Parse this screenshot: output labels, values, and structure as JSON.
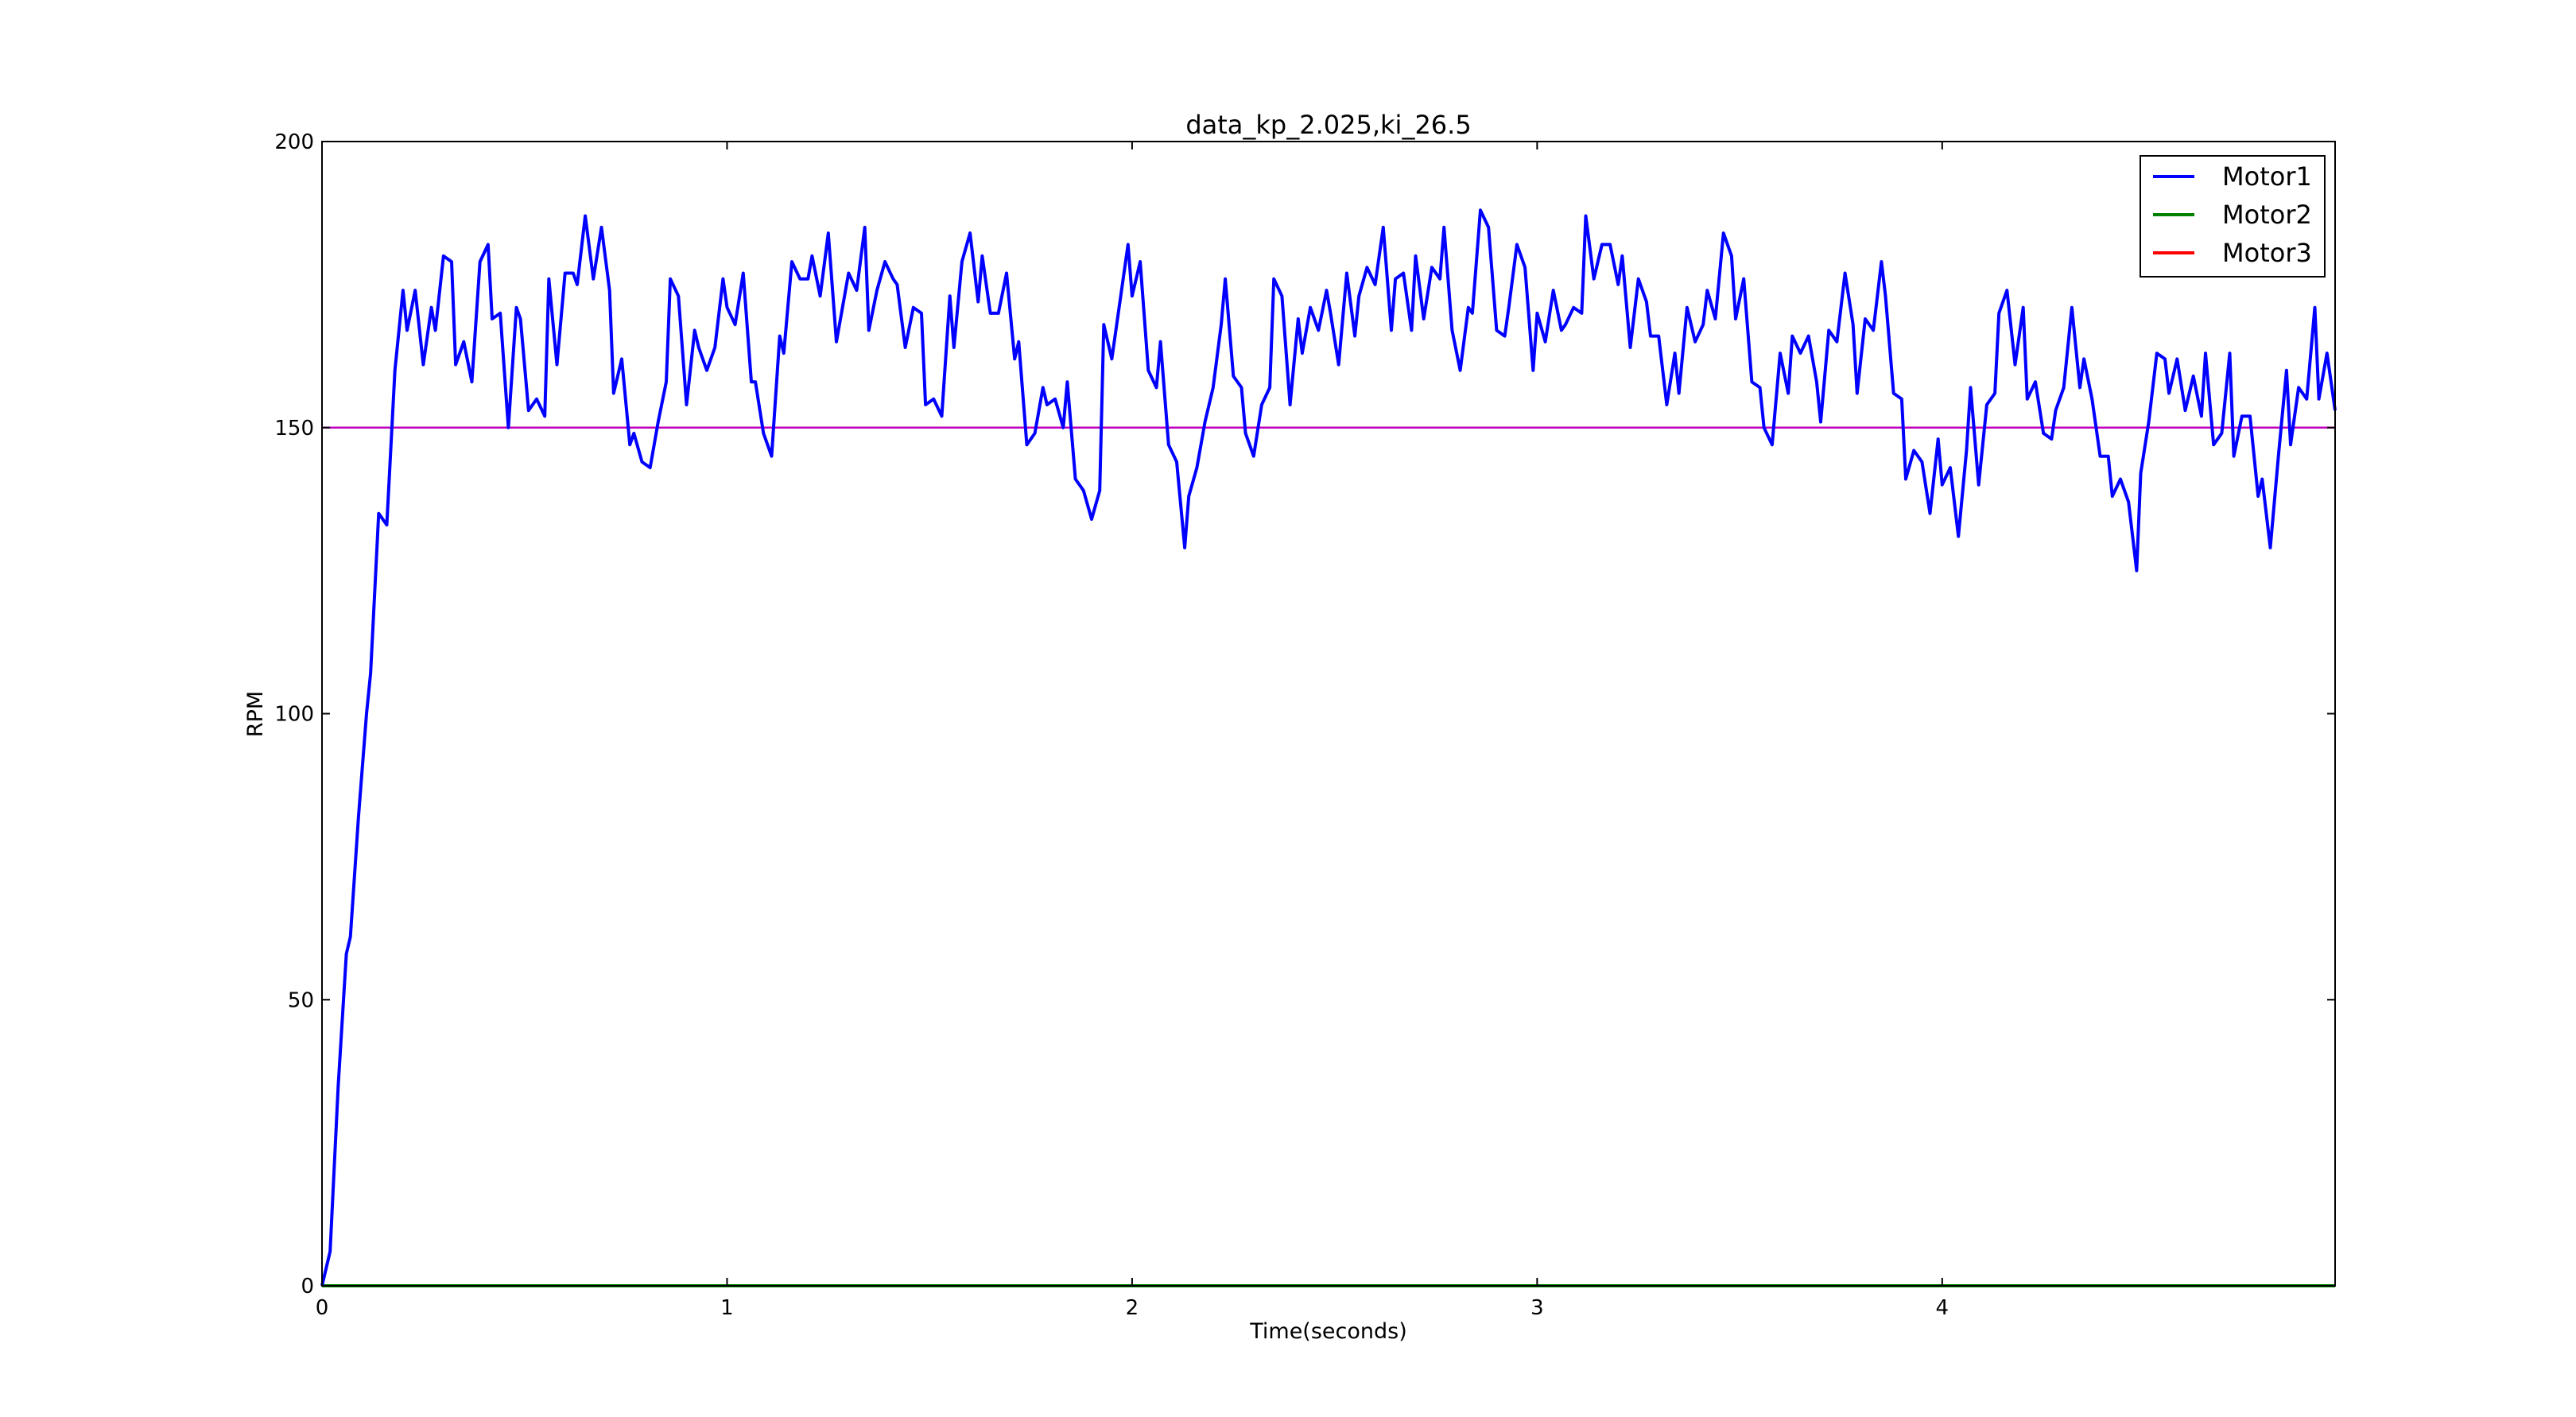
{
  "chart_data": {
    "type": "line",
    "title": "data_kp_2.025,ki_26.5",
    "xlabel": "Time(seconds)",
    "ylabel": "RPM",
    "xlim": [
      0,
      4.97
    ],
    "ylim": [
      0,
      200
    ],
    "xticks": [
      0,
      1,
      2,
      3,
      4
    ],
    "yticks": [
      0,
      50,
      100,
      150,
      200
    ],
    "grid": false,
    "legend_position": "top-right",
    "reference_line": {
      "y": 150,
      "color": "#bf00bf"
    },
    "series": [
      {
        "name": "Motor1",
        "color": "#0000ff",
        "points": [
          [
            0,
            0
          ],
          [
            0.02,
            6
          ],
          [
            0.04,
            35
          ],
          [
            0.06,
            58
          ],
          [
            0.07,
            61
          ],
          [
            0.09,
            82
          ],
          [
            0.11,
            100
          ],
          [
            0.12,
            107
          ],
          [
            0.14,
            135
          ],
          [
            0.16,
            133
          ],
          [
            0.18,
            160
          ],
          [
            0.2,
            174
          ],
          [
            0.21,
            167
          ],
          [
            0.23,
            174
          ],
          [
            0.25,
            161
          ],
          [
            0.27,
            171
          ],
          [
            0.28,
            167
          ],
          [
            0.3,
            180
          ],
          [
            0.32,
            179
          ],
          [
            0.33,
            161
          ],
          [
            0.35,
            165
          ],
          [
            0.37,
            158
          ],
          [
            0.39,
            179
          ],
          [
            0.41,
            182
          ],
          [
            0.42,
            169
          ],
          [
            0.44,
            170
          ],
          [
            0.46,
            150
          ],
          [
            0.48,
            171
          ],
          [
            0.49,
            169
          ],
          [
            0.51,
            153
          ],
          [
            0.53,
            155
          ],
          [
            0.55,
            152
          ],
          [
            0.56,
            176
          ],
          [
            0.58,
            161
          ],
          [
            0.6,
            177
          ],
          [
            0.62,
            177
          ],
          [
            0.63,
            175
          ],
          [
            0.65,
            187
          ],
          [
            0.67,
            176
          ],
          [
            0.69,
            185
          ],
          [
            0.71,
            174
          ],
          [
            0.72,
            156
          ],
          [
            0.74,
            162
          ],
          [
            0.76,
            147
          ],
          [
            0.77,
            149
          ],
          [
            0.79,
            144
          ],
          [
            0.81,
            143
          ],
          [
            0.83,
            151
          ],
          [
            0.85,
            158
          ],
          [
            0.86,
            176
          ],
          [
            0.88,
            173
          ],
          [
            0.9,
            154
          ],
          [
            0.92,
            167
          ],
          [
            0.93,
            164
          ],
          [
            0.95,
            160
          ],
          [
            0.97,
            164
          ],
          [
            0.99,
            176
          ],
          [
            1.0,
            171
          ],
          [
            1.02,
            168
          ],
          [
            1.04,
            177
          ],
          [
            1.06,
            158
          ],
          [
            1.07,
            158
          ],
          [
            1.09,
            149
          ],
          [
            1.11,
            145
          ],
          [
            1.13,
            166
          ],
          [
            1.14,
            163
          ],
          [
            1.16,
            179
          ],
          [
            1.18,
            176
          ],
          [
            1.2,
            176
          ],
          [
            1.21,
            180
          ],
          [
            1.23,
            173
          ],
          [
            1.25,
            184
          ],
          [
            1.27,
            165
          ],
          [
            1.29,
            173
          ],
          [
            1.3,
            177
          ],
          [
            1.32,
            174
          ],
          [
            1.34,
            185
          ],
          [
            1.35,
            167
          ],
          [
            1.37,
            174
          ],
          [
            1.39,
            179
          ],
          [
            1.41,
            176
          ],
          [
            1.42,
            175
          ],
          [
            1.44,
            164
          ],
          [
            1.46,
            171
          ],
          [
            1.48,
            170
          ],
          [
            1.49,
            154
          ],
          [
            1.51,
            155
          ],
          [
            1.53,
            152
          ],
          [
            1.55,
            173
          ],
          [
            1.56,
            164
          ],
          [
            1.58,
            179
          ],
          [
            1.6,
            184
          ],
          [
            1.62,
            172
          ],
          [
            1.63,
            180
          ],
          [
            1.65,
            170
          ],
          [
            1.67,
            170
          ],
          [
            1.69,
            177
          ],
          [
            1.71,
            162
          ],
          [
            1.72,
            165
          ],
          [
            1.74,
            147
          ],
          [
            1.76,
            149
          ],
          [
            1.78,
            157
          ],
          [
            1.79,
            154
          ],
          [
            1.81,
            155
          ],
          [
            1.83,
            150
          ],
          [
            1.84,
            158
          ],
          [
            1.86,
            141
          ],
          [
            1.88,
            139
          ],
          [
            1.9,
            134
          ],
          [
            1.92,
            139
          ],
          [
            1.93,
            168
          ],
          [
            1.95,
            162
          ],
          [
            1.97,
            172
          ],
          [
            1.99,
            182
          ],
          [
            2.0,
            173
          ],
          [
            2.02,
            179
          ],
          [
            2.04,
            160
          ],
          [
            2.06,
            157
          ],
          [
            2.07,
            165
          ],
          [
            2.09,
            147
          ],
          [
            2.11,
            144
          ],
          [
            2.13,
            129
          ],
          [
            2.14,
            138
          ],
          [
            2.16,
            143
          ],
          [
            2.18,
            151
          ],
          [
            2.2,
            157
          ],
          [
            2.22,
            168
          ],
          [
            2.23,
            176
          ],
          [
            2.25,
            159
          ],
          [
            2.27,
            157
          ],
          [
            2.28,
            149
          ],
          [
            2.3,
            145
          ],
          [
            2.32,
            154
          ],
          [
            2.34,
            157
          ],
          [
            2.35,
            176
          ],
          [
            2.37,
            173
          ],
          [
            2.39,
            154
          ],
          [
            2.41,
            169
          ],
          [
            2.42,
            163
          ],
          [
            2.44,
            171
          ],
          [
            2.46,
            167
          ],
          [
            2.48,
            174
          ],
          [
            2.49,
            170
          ],
          [
            2.51,
            161
          ],
          [
            2.53,
            177
          ],
          [
            2.55,
            166
          ],
          [
            2.56,
            173
          ],
          [
            2.58,
            178
          ],
          [
            2.6,
            175
          ],
          [
            2.62,
            185
          ],
          [
            2.64,
            167
          ],
          [
            2.65,
            176
          ],
          [
            2.67,
            177
          ],
          [
            2.69,
            167
          ],
          [
            2.7,
            180
          ],
          [
            2.72,
            169
          ],
          [
            2.74,
            178
          ],
          [
            2.76,
            176
          ],
          [
            2.77,
            185
          ],
          [
            2.79,
            167
          ],
          [
            2.81,
            160
          ],
          [
            2.83,
            171
          ],
          [
            2.84,
            170
          ],
          [
            2.86,
            188
          ],
          [
            2.88,
            185
          ],
          [
            2.9,
            167
          ],
          [
            2.92,
            166
          ],
          [
            2.93,
            171
          ],
          [
            2.95,
            182
          ],
          [
            2.97,
            178
          ],
          [
            2.99,
            160
          ],
          [
            3.0,
            170
          ],
          [
            3.02,
            165
          ],
          [
            3.04,
            174
          ],
          [
            3.06,
            167
          ],
          [
            3.07,
            168
          ],
          [
            3.09,
            171
          ],
          [
            3.11,
            170
          ],
          [
            3.12,
            187
          ],
          [
            3.14,
            176
          ],
          [
            3.16,
            182
          ],
          [
            3.18,
            182
          ],
          [
            3.2,
            175
          ],
          [
            3.21,
            180
          ],
          [
            3.23,
            164
          ],
          [
            3.25,
            176
          ],
          [
            3.27,
            172
          ],
          [
            3.28,
            166
          ],
          [
            3.3,
            166
          ],
          [
            3.32,
            154
          ],
          [
            3.34,
            163
          ],
          [
            3.35,
            156
          ],
          [
            3.37,
            171
          ],
          [
            3.39,
            165
          ],
          [
            3.41,
            168
          ],
          [
            3.42,
            174
          ],
          [
            3.44,
            169
          ],
          [
            3.46,
            184
          ],
          [
            3.48,
            180
          ],
          [
            3.49,
            169
          ],
          [
            3.51,
            176
          ],
          [
            3.53,
            158
          ],
          [
            3.55,
            157
          ],
          [
            3.56,
            150
          ],
          [
            3.58,
            147
          ],
          [
            3.6,
            163
          ],
          [
            3.62,
            156
          ],
          [
            3.63,
            166
          ],
          [
            3.65,
            163
          ],
          [
            3.67,
            166
          ],
          [
            3.69,
            158
          ],
          [
            3.7,
            151
          ],
          [
            3.72,
            167
          ],
          [
            3.74,
            165
          ],
          [
            3.76,
            177
          ],
          [
            3.78,
            168
          ],
          [
            3.79,
            156
          ],
          [
            3.81,
            169
          ],
          [
            3.83,
            167
          ],
          [
            3.85,
            179
          ],
          [
            3.86,
            173
          ],
          [
            3.88,
            156
          ],
          [
            3.9,
            155
          ],
          [
            3.91,
            141
          ],
          [
            3.93,
            146
          ],
          [
            3.95,
            144
          ],
          [
            3.97,
            135
          ],
          [
            3.99,
            148
          ],
          [
            4.0,
            140
          ],
          [
            4.02,
            143
          ],
          [
            4.04,
            131
          ],
          [
            4.06,
            146
          ],
          [
            4.07,
            157
          ],
          [
            4.09,
            140
          ],
          [
            4.11,
            154
          ],
          [
            4.13,
            156
          ],
          [
            4.14,
            170
          ],
          [
            4.16,
            174
          ],
          [
            4.18,
            161
          ],
          [
            4.2,
            171
          ],
          [
            4.21,
            155
          ],
          [
            4.23,
            158
          ],
          [
            4.25,
            149
          ],
          [
            4.27,
            148
          ],
          [
            4.28,
            153
          ],
          [
            4.3,
            157
          ],
          [
            4.32,
            171
          ],
          [
            4.34,
            157
          ],
          [
            4.35,
            162
          ],
          [
            4.37,
            155
          ],
          [
            4.39,
            145
          ],
          [
            4.41,
            145
          ],
          [
            4.42,
            138
          ],
          [
            4.44,
            141
          ],
          [
            4.46,
            137
          ],
          [
            4.48,
            125
          ],
          [
            4.49,
            142
          ],
          [
            4.51,
            151
          ],
          [
            4.53,
            163
          ],
          [
            4.55,
            162
          ],
          [
            4.56,
            156
          ],
          [
            4.58,
            162
          ],
          [
            4.6,
            153
          ],
          [
            4.62,
            159
          ],
          [
            4.64,
            152
          ],
          [
            4.65,
            163
          ],
          [
            4.67,
            147
          ],
          [
            4.69,
            149
          ],
          [
            4.71,
            163
          ],
          [
            4.72,
            145
          ],
          [
            4.74,
            152
          ],
          [
            4.76,
            152
          ],
          [
            4.78,
            138
          ],
          [
            4.79,
            141
          ],
          [
            4.81,
            129
          ],
          [
            4.83,
            145
          ],
          [
            4.85,
            160
          ],
          [
            4.86,
            147
          ],
          [
            4.88,
            157
          ],
          [
            4.9,
            155
          ],
          [
            4.92,
            171
          ],
          [
            4.93,
            155
          ],
          [
            4.95,
            163
          ],
          [
            4.97,
            153
          ]
        ]
      },
      {
        "name": "Motor2",
        "color": "#008000",
        "points": [
          [
            0,
            0
          ],
          [
            4.97,
            0
          ]
        ]
      },
      {
        "name": "Motor3",
        "color": "#ff0000",
        "points": [
          [
            0,
            0
          ],
          [
            4.97,
            0
          ]
        ]
      }
    ]
  }
}
